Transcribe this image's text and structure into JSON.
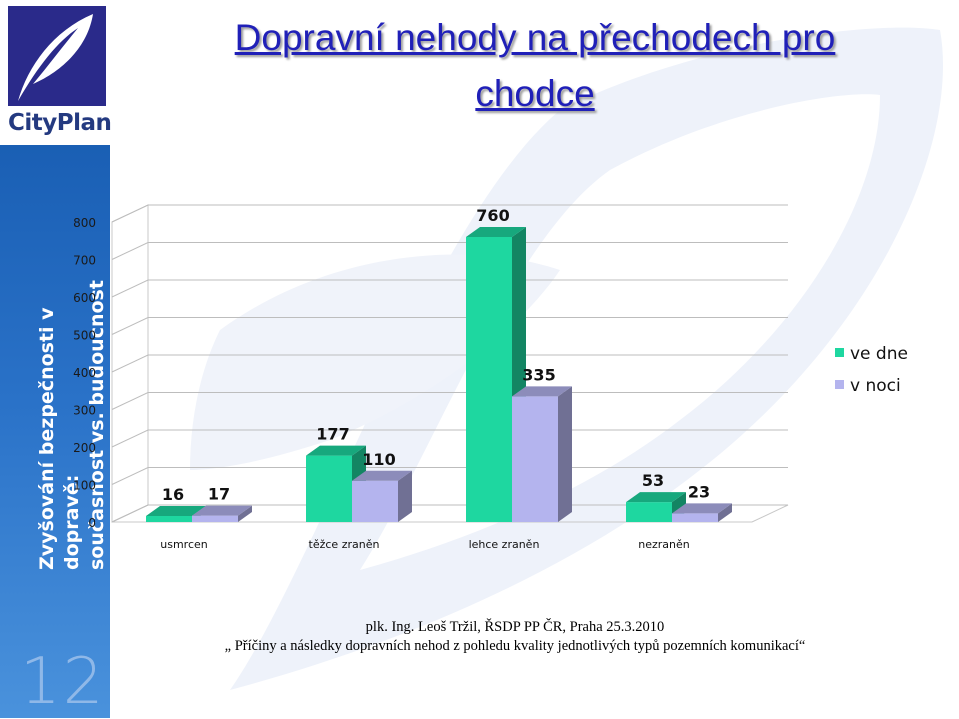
{
  "title": {
    "line1": "Dopravní nehody na  přechodech pro",
    "line2": "chodce"
  },
  "logo": {
    "text": "CityPlan"
  },
  "sidebar": {
    "line1": "Zvyšování bezpečnosti v dopravě:",
    "line2": "současnost vs. budoucnost",
    "slide_number": "12"
  },
  "colors": {
    "day": "#1ed7a0",
    "night": "#b4b4ee",
    "title": "#2020b8",
    "sidebar": "#1a5fb4"
  },
  "chart_data": {
    "type": "bar",
    "style": "3d-clustered",
    "categories": [
      "usmrcen",
      "těžce zraněn",
      "lehce zraněn",
      "nezraněn"
    ],
    "series": [
      {
        "name": "ve dne",
        "values": [
          16,
          177,
          760,
          53
        ],
        "color": "#1ed7a0"
      },
      {
        "name": "v noci",
        "values": [
          17,
          110,
          335,
          23
        ],
        "color": "#b4b4ee"
      }
    ],
    "yticks": [
      "0",
      "100",
      "200",
      "300",
      "400",
      "500",
      "600",
      "700",
      "800"
    ],
    "ylim": [
      0,
      800
    ],
    "grid": true,
    "legend": "right"
  },
  "citation": {
    "author": "plk. Ing. Leoš  Tržil,  ŘSDP  PP ČR, Praha 25.3.2010",
    "text": "„ Příčiny a následky dopravních  nehod  z pohledu kvality  jednotlivých typů pozemních komunikací“"
  }
}
